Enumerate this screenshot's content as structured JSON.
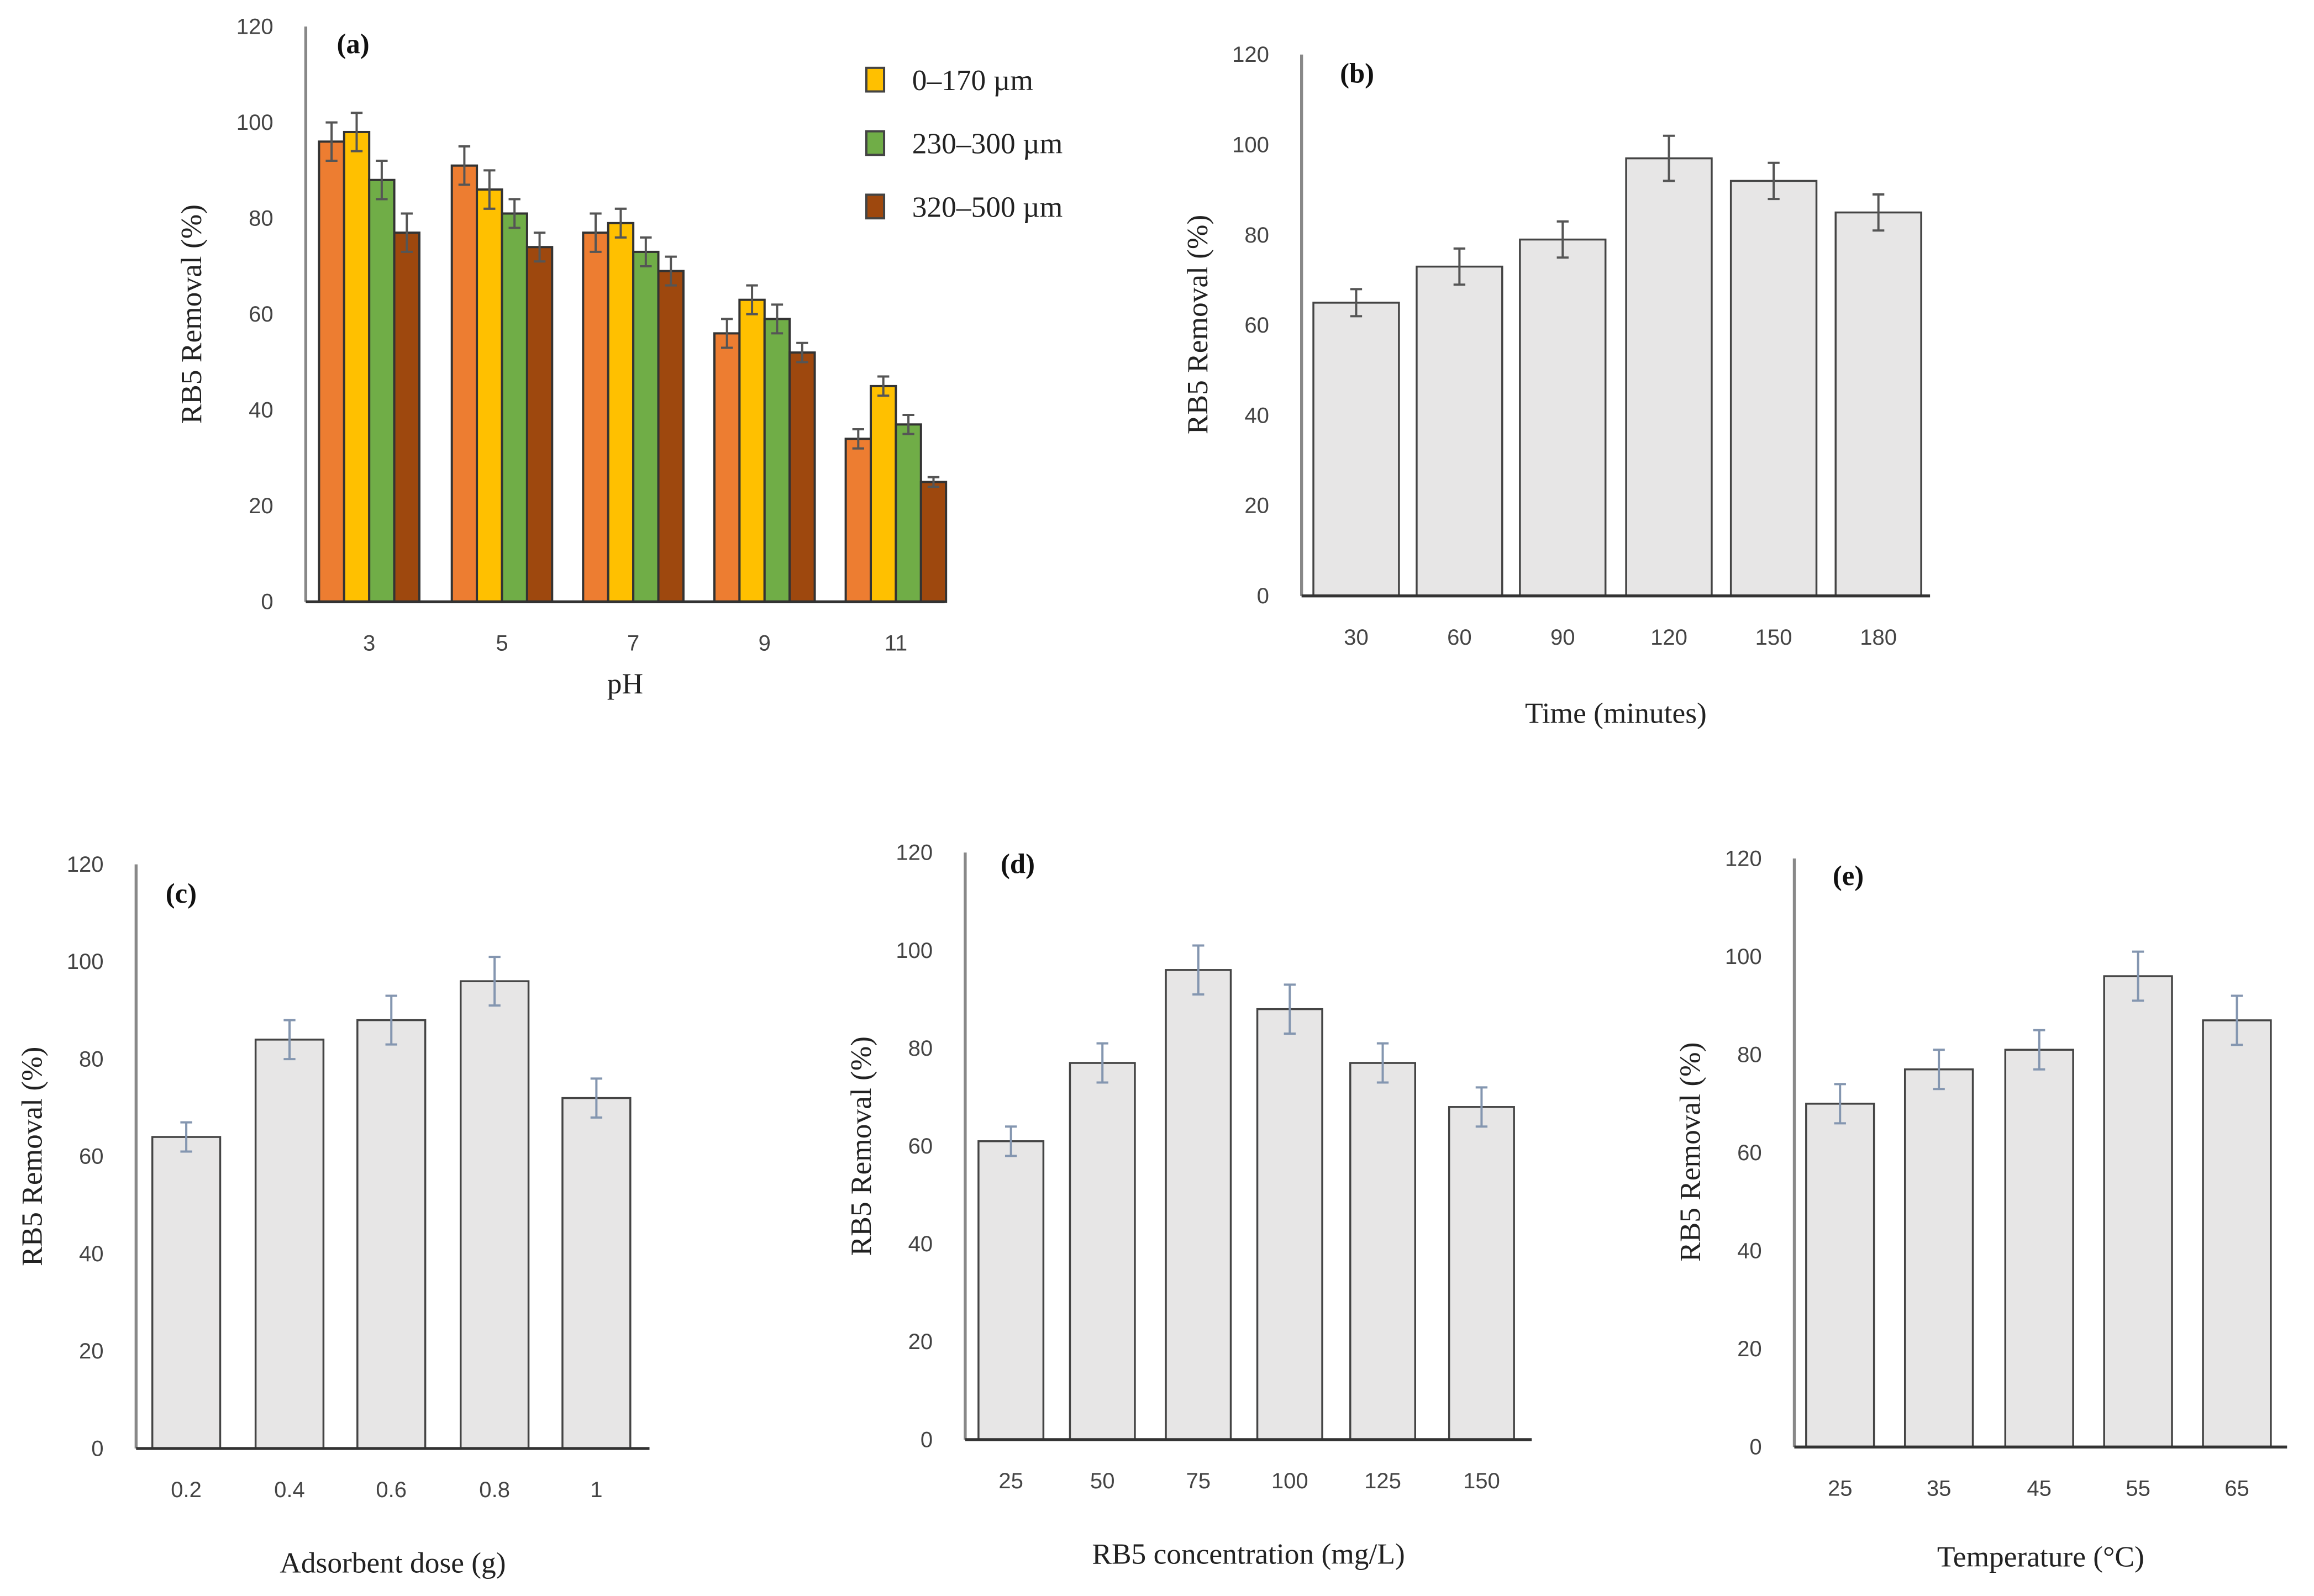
{
  "chart_data": [
    {
      "type": "bar",
      "title": "(a)",
      "xlabel": "pH",
      "ylabel": "RB5  Removal (%)",
      "ylim": [
        0,
        120
      ],
      "yticks": [
        "0",
        "20",
        "40",
        "60",
        "80",
        "100",
        "120"
      ],
      "categories": [
        "3",
        "5",
        "7",
        "9",
        "11"
      ],
      "legend_placement": "top-right",
      "series": [
        {
          "name": "",
          "color": "#ED7D31",
          "values": [
            96,
            91,
            77,
            56,
            34
          ],
          "errors": [
            4,
            4,
            4,
            3,
            2
          ]
        },
        {
          "name": "0–170 µm",
          "color": "#FFC000",
          "values": [
            98,
            86,
            79,
            63,
            45
          ],
          "errors": [
            4,
            4,
            3,
            3,
            2
          ]
        },
        {
          "name": "230–300 µm",
          "color": "#70AD47",
          "values": [
            88,
            81,
            73,
            59,
            37
          ],
          "errors": [
            4,
            3,
            3,
            3,
            2
          ]
        },
        {
          "name": "320–500 µm",
          "color": "#9E480E",
          "values": [
            77,
            74,
            69,
            52,
            25
          ],
          "errors": [
            4,
            3,
            3,
            2,
            1
          ]
        }
      ]
    },
    {
      "type": "bar",
      "title": "(b)",
      "xlabel": "Time (minutes)",
      "ylabel": "RB5  Removal (%)",
      "ylim": [
        0,
        120
      ],
      "yticks": [
        "0",
        "20",
        "40",
        "60",
        "80",
        "100",
        "120"
      ],
      "categories": [
        "30",
        "60",
        "90",
        "120",
        "150",
        "180"
      ],
      "series": [
        {
          "name": "",
          "color": "#E7E6E6",
          "values": [
            65,
            73,
            79,
            97,
            92,
            85
          ],
          "errors": [
            3,
            4,
            4,
            5,
            4,
            4
          ]
        }
      ]
    },
    {
      "type": "bar",
      "title": "(c)",
      "xlabel": "Adsorbent  dose (g)",
      "ylabel": "RB5 Removal (%)",
      "ylim": [
        0,
        120
      ],
      "yticks": [
        "0",
        "20",
        "40",
        "60",
        "80",
        "100",
        "120"
      ],
      "categories": [
        "0.2",
        "0.4",
        "0.6",
        "0.8",
        "1"
      ],
      "series": [
        {
          "name": "",
          "color": "#E7E6E6",
          "values": [
            64,
            84,
            88,
            96,
            72
          ],
          "errors": [
            3,
            4,
            5,
            5,
            4
          ]
        }
      ]
    },
    {
      "type": "bar",
      "title": "(d)",
      "xlabel": "RB5 concentration (mg/L)",
      "ylabel": "RB5 Removal (%)",
      "ylim": [
        0,
        120
      ],
      "yticks": [
        "0",
        "20",
        "40",
        "60",
        "80",
        "100",
        "120"
      ],
      "categories": [
        "25",
        "50",
        "75",
        "100",
        "125",
        "150"
      ],
      "series": [
        {
          "name": "",
          "color": "#E7E6E6",
          "values": [
            61,
            77,
            96,
            88,
            77,
            68
          ],
          "errors": [
            3,
            4,
            5,
            5,
            4,
            4
          ]
        }
      ]
    },
    {
      "type": "bar",
      "title": "(e)",
      "xlabel": "Temperature (°C)",
      "ylabel": "RB5 Removal (%)",
      "ylim": [
        0,
        120
      ],
      "yticks": [
        "0",
        "20",
        "40",
        "60",
        "80",
        "100",
        "120"
      ],
      "categories": [
        "25",
        "35",
        "45",
        "55",
        "65"
      ],
      "series": [
        {
          "name": "",
          "color": "#E7E6E6",
          "values": [
            70,
            77,
            81,
            96,
            87
          ],
          "errors": [
            4,
            4,
            4,
            5,
            5
          ]
        }
      ]
    }
  ]
}
